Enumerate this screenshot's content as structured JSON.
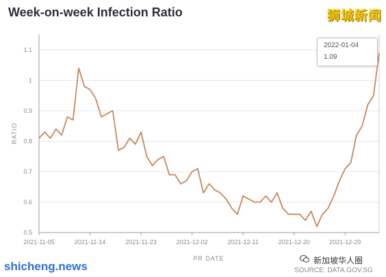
{
  "title": "Week-on-week Infection Ratio",
  "brand_badge": "狮城新闻",
  "source": "SOURCE: DATA.GOV.SG",
  "watermark_left": "shicheng.news",
  "watermark_right": "新加坡华人圈",
  "tooltip": {
    "date": "2022-01-04",
    "value": "1.09"
  },
  "colors": {
    "line": "#c8875a",
    "grid": "#e6e6e6",
    "axis": "#9e9e9e",
    "text": "#8a8a8a",
    "title": "#2b2f3a"
  },
  "chart_data": {
    "type": "line",
    "title": "Week-on-week Infection Ratio",
    "xlabel": "PR DATE",
    "ylabel": "RATIO",
    "ylim": [
      0.5,
      1.15
    ],
    "yticks": [
      0.5,
      0.6,
      0.7,
      0.8,
      0.9,
      1,
      1.1
    ],
    "ytick_labels": [
      "0.5",
      "0.6",
      "0.7",
      "0.8",
      "0.9",
      "1",
      "1.1"
    ],
    "xticks": [
      "2021-11-05",
      "2021-11-14",
      "2021-11-23",
      "2021-12-02",
      "2021-12-11",
      "2021-12-20",
      "2021-12-29"
    ],
    "grid": "horizontal",
    "x": [
      "2021-11-05",
      "2021-11-06",
      "2021-11-07",
      "2021-11-08",
      "2021-11-09",
      "2021-11-10",
      "2021-11-11",
      "2021-11-12",
      "2021-11-13",
      "2021-11-14",
      "2021-11-15",
      "2021-11-16",
      "2021-11-17",
      "2021-11-18",
      "2021-11-19",
      "2021-11-20",
      "2021-11-21",
      "2021-11-22",
      "2021-11-23",
      "2021-11-24",
      "2021-11-25",
      "2021-11-26",
      "2021-11-27",
      "2021-11-28",
      "2021-11-29",
      "2021-11-30",
      "2021-12-01",
      "2021-12-02",
      "2021-12-03",
      "2021-12-04",
      "2021-12-05",
      "2021-12-06",
      "2021-12-07",
      "2021-12-08",
      "2021-12-09",
      "2021-12-10",
      "2021-12-11",
      "2021-12-12",
      "2021-12-13",
      "2021-12-14",
      "2021-12-15",
      "2021-12-16",
      "2021-12-17",
      "2021-12-18",
      "2021-12-19",
      "2021-12-20",
      "2021-12-21",
      "2021-12-22",
      "2021-12-23",
      "2021-12-24",
      "2021-12-25",
      "2021-12-26",
      "2021-12-27",
      "2021-12-28",
      "2021-12-29",
      "2021-12-30",
      "2021-12-31",
      "2022-01-01",
      "2022-01-02",
      "2022-01-03",
      "2022-01-04"
    ],
    "series": [
      {
        "values": [
          0.81,
          0.83,
          0.81,
          0.84,
          0.82,
          0.88,
          0.87,
          1.04,
          0.98,
          0.97,
          0.94,
          0.88,
          0.89,
          0.9,
          0.77,
          0.78,
          0.81,
          0.79,
          0.83,
          0.75,
          0.72,
          0.74,
          0.75,
          0.69,
          0.69,
          0.66,
          0.67,
          0.7,
          0.71,
          0.63,
          0.66,
          0.64,
          0.63,
          0.61,
          0.58,
          0.56,
          0.62,
          0.61,
          0.6,
          0.6,
          0.62,
          0.6,
          0.63,
          0.58,
          0.56,
          0.56,
          0.56,
          0.54,
          0.57,
          0.52,
          0.56,
          0.58,
          0.62,
          0.67,
          0.71,
          0.73,
          0.82,
          0.85,
          0.92,
          0.95,
          1.09
        ]
      }
    ]
  }
}
